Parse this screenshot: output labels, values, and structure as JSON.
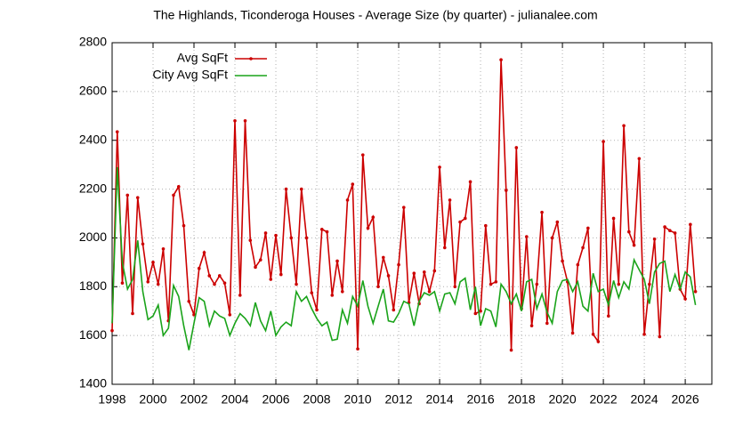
{
  "chart_data": {
    "type": "line",
    "title": "The Highlands, Ticonderoga Houses - Average Size (by quarter) - julianalee.com",
    "x": [
      1998,
      1998.25,
      1998.5,
      1998.75,
      1999,
      1999.25,
      1999.5,
      1999.75,
      2000,
      2000.25,
      2000.5,
      2000.75,
      2001,
      2001.25,
      2001.5,
      2001.75,
      2002,
      2002.25,
      2002.5,
      2002.75,
      2003,
      2003.25,
      2003.5,
      2003.75,
      2004,
      2004.25,
      2004.5,
      2004.75,
      2005,
      2005.25,
      2005.5,
      2005.75,
      2006,
      2006.25,
      2006.5,
      2006.75,
      2007,
      2007.25,
      2007.5,
      2007.75,
      2008,
      2008.25,
      2008.5,
      2008.75,
      2009,
      2009.25,
      2009.5,
      2009.75,
      2010,
      2010.25,
      2010.5,
      2010.75,
      2011,
      2011.25,
      2011.5,
      2011.75,
      2012,
      2012.25,
      2012.5,
      2012.75,
      2013,
      2013.25,
      2013.5,
      2013.75,
      2014,
      2014.25,
      2014.5,
      2014.75,
      2015,
      2015.25,
      2015.5,
      2015.75,
      2016,
      2016.25,
      2016.5,
      2016.75,
      2017,
      2017.25,
      2017.5,
      2017.75,
      2018,
      2018.25,
      2018.5,
      2018.75,
      2019,
      2019.25,
      2019.5,
      2019.75,
      2020,
      2020.25,
      2020.5,
      2020.75,
      2021,
      2021.25,
      2021.5,
      2021.75,
      2022,
      2022.25,
      2022.5,
      2022.75,
      2023,
      2023.25,
      2023.5,
      2023.75,
      2024,
      2024.25,
      2024.5,
      2024.75,
      2025,
      2025.25,
      2025.5,
      2025.75,
      2026,
      2026.25,
      2026.5
    ],
    "series": [
      {
        "name": "Avg SqFt",
        "color": "#cc0000",
        "markers": true,
        "values": [
          1620,
          2435,
          1815,
          2175,
          1690,
          2165,
          1975,
          1820,
          1900,
          1810,
          1955,
          1660,
          2175,
          2210,
          2050,
          1740,
          1685,
          1875,
          1940,
          1845,
          1810,
          1845,
          1815,
          1685,
          2480,
          1765,
          2480,
          1990,
          1880,
          1910,
          2020,
          1830,
          2010,
          1850,
          2200,
          2000,
          1810,
          2200,
          2000,
          1775,
          1705,
          2035,
          2025,
          1765,
          1905,
          1780,
          2155,
          2220,
          1545,
          2340,
          2040,
          2085,
          1800,
          1920,
          1845,
          1705,
          1890,
          2125,
          1735,
          1855,
          1730,
          1860,
          1780,
          1865,
          2290,
          1960,
          2155,
          1800,
          2065,
          2080,
          2230,
          1690,
          1700,
          2050,
          1810,
          1820,
          2730,
          2195,
          1540,
          2370,
          1710,
          2005,
          1640,
          1810,
          2105,
          1650,
          2000,
          2065,
          1905,
          1820,
          1610,
          1890,
          1960,
          2040,
          1605,
          1575,
          2395,
          1680,
          2080,
          1810,
          2460,
          2025,
          1970,
          2325,
          1605,
          1810,
          1995,
          1595,
          2045,
          2030,
          2020,
          1790,
          1750,
          2055,
          1780
        ]
      },
      {
        "name": "City Avg SqFt",
        "color": "#1aa31a",
        "markers": false,
        "values": [
          1650,
          2290,
          1900,
          1790,
          1830,
          1990,
          1780,
          1665,
          1680,
          1725,
          1600,
          1630,
          1805,
          1760,
          1640,
          1540,
          1650,
          1755,
          1740,
          1640,
          1700,
          1680,
          1670,
          1600,
          1650,
          1690,
          1670,
          1640,
          1735,
          1660,
          1620,
          1700,
          1600,
          1635,
          1655,
          1640,
          1780,
          1740,
          1760,
          1710,
          1670,
          1640,
          1655,
          1580,
          1585,
          1705,
          1650,
          1760,
          1720,
          1825,
          1720,
          1650,
          1720,
          1790,
          1660,
          1655,
          1690,
          1740,
          1730,
          1640,
          1740,
          1775,
          1765,
          1780,
          1700,
          1770,
          1775,
          1730,
          1820,
          1835,
          1705,
          1800,
          1640,
          1710,
          1700,
          1635,
          1810,
          1780,
          1730,
          1770,
          1700,
          1820,
          1830,
          1710,
          1770,
          1695,
          1650,
          1780,
          1825,
          1830,
          1780,
          1820,
          1720,
          1700,
          1855,
          1780,
          1790,
          1725,
          1825,
          1755,
          1820,
          1790,
          1910,
          1870,
          1830,
          1730,
          1860,
          1895,
          1905,
          1780,
          1850,
          1790,
          1860,
          1840,
          1725
        ]
      }
    ],
    "xlim": [
      1998,
      2027.3
    ],
    "xticks": [
      1998,
      2000,
      2002,
      2004,
      2006,
      2008,
      2010,
      2012,
      2014,
      2016,
      2018,
      2020,
      2022,
      2024,
      2026
    ],
    "ylim": [
      1400,
      2800
    ],
    "yticks": [
      1400,
      1600,
      1800,
      2000,
      2200,
      2400,
      2600,
      2800
    ],
    "grid": true,
    "legend": "top-left"
  }
}
